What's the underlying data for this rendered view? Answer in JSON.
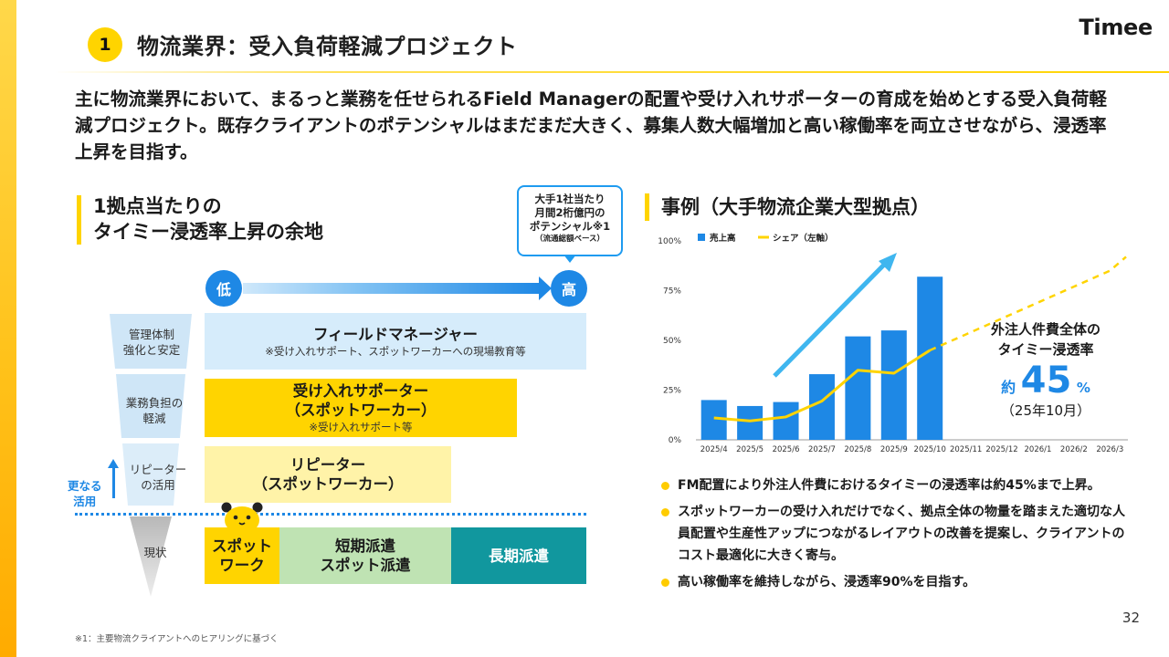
{
  "brand": {
    "logo": "Timee",
    "accent": "#ffd400",
    "blue": "#1e88e5"
  },
  "header": {
    "number": "1",
    "title": "物流業界：受入負荷軽減プロジェクト"
  },
  "intro": "主に物流業界において、まるっと業務を任せられるField Managerの配置や受け入れサポーターの育成を始めとする受入負荷軽減プロジェクト。既存クライアントのポテンシャルはまだまだ大きく、募集人数大幅増加と高い稼働率を両立させながら、浸透率上昇を目指す。",
  "left_section": {
    "title_line1": "1拠点当たりの",
    "title_line2": "タイミー浸透率上昇の余地",
    "callout": {
      "line1": "大手1社当たり",
      "line2": "月間2桁億円の",
      "line3": "ポテンシャル※1",
      "line4": "（流通総額ベース）"
    },
    "low_label": "低",
    "high_label": "高",
    "funnel_labels": [
      "管理体制\n強化と安定",
      "業務負担の\n軽減",
      "リピーター\nの活用",
      "現状"
    ],
    "rows": {
      "field_manager": {
        "title": "フィールドマネージャー",
        "sub": "※受け入れサポート、スポットワーカーへの現場教育等"
      },
      "supporter": {
        "title1": "受け入れサポーター",
        "title2": "（スポットワーカー）",
        "sub": "※受け入れサポート等"
      },
      "repeater": {
        "title1": "リピーター",
        "title2": "（スポットワーカー）"
      },
      "current": {
        "spot": "スポット\nワーク",
        "short": "短期派遣\nスポット派遣",
        "long": "長期派遣"
      }
    },
    "sarani": "更なる\n活用"
  },
  "right_section": {
    "title": "事例（大手物流企業大型拠点）",
    "annotation": {
      "line1": "外注人件費全体の",
      "line2": "タイミー浸透率",
      "prefix": "約",
      "value": "45",
      "suffix": "%",
      "line3": "（25年10月）"
    },
    "bullets": [
      "FM配置により外注人件費におけるタイミーの浸透率は約45%まで上昇。",
      "スポットワーカーの受け入れだけでなく、拠点全体の物量を踏まえた適切な人員配置や生産性アップにつながるレイアウトの改善を提案し、クライアントのコスト最適化に大きく寄与。",
      "高い稼働率を維持しながら、浸透率90%を目指す。"
    ]
  },
  "chart_data": {
    "type": "bar",
    "categories": [
      "2025/4",
      "2025/5",
      "2025/6",
      "2025/7",
      "2025/8",
      "2025/9",
      "2025/10",
      "2025/11",
      "2025/12",
      "2026/1",
      "2026/2",
      "2026/3"
    ],
    "y_ticks": [
      "0%",
      "25%",
      "50%",
      "75%",
      "100%"
    ],
    "ylim": [
      0,
      100
    ],
    "series": [
      {
        "name": "売上高",
        "type": "bar",
        "color": "#1e88e5",
        "values": [
          20,
          17,
          19,
          33,
          52,
          55,
          82,
          null,
          null,
          null,
          null,
          null
        ]
      },
      {
        "name": "シェア（左軸）",
        "type": "line",
        "color": "#ffd400",
        "values": [
          11,
          9.5,
          11.5,
          19.5,
          35,
          33.5,
          45,
          null,
          null,
          null,
          null,
          null
        ],
        "projection": [
          45,
          53,
          61,
          69,
          77,
          85,
          92
        ]
      }
    ],
    "legend_position": "top-left",
    "grid": false
  }
}
